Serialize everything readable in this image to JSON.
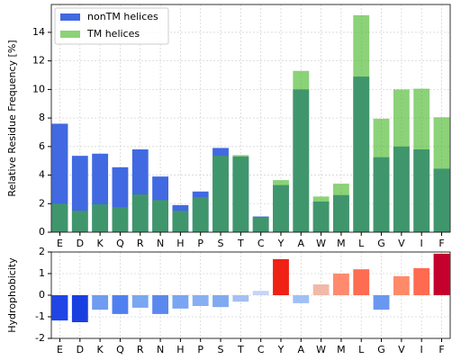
{
  "chart_data": [
    {
      "type": "bar",
      "ylabel": "Relative Residue Frequency [%]",
      "categories": [
        "E",
        "D",
        "K",
        "Q",
        "R",
        "N",
        "H",
        "P",
        "S",
        "T",
        "C",
        "Y",
        "A",
        "W",
        "M",
        "L",
        "G",
        "V",
        "I",
        "F"
      ],
      "series": [
        {
          "name": "nonTM helices",
          "color": "#4169e1",
          "opacity": 1,
          "values": [
            7.6,
            5.35,
            5.5,
            4.55,
            5.8,
            3.9,
            1.9,
            2.85,
            5.9,
            5.3,
            1.1,
            3.3,
            10.0,
            2.15,
            2.6,
            10.9,
            5.25,
            6.0,
            5.8,
            4.45
          ]
        },
        {
          "name": "TM helices",
          "color": "#3fb41e",
          "opacity": 0.6,
          "values": [
            2.0,
            1.5,
            1.95,
            1.75,
            2.65,
            2.25,
            1.5,
            2.45,
            5.35,
            5.4,
            1.05,
            3.65,
            11.3,
            2.5,
            3.4,
            15.2,
            7.95,
            10.0,
            10.05,
            8.05
          ]
        }
      ],
      "ylim": [
        0,
        15.95
      ],
      "yticks": [
        0,
        2,
        4,
        6,
        8,
        10,
        12,
        14
      ],
      "grid": true,
      "legend": "upper left"
    },
    {
      "type": "bar",
      "ylabel": "Hydrophobicity",
      "categories": [
        "E",
        "D",
        "K",
        "Q",
        "R",
        "N",
        "H",
        "P",
        "S",
        "T",
        "C",
        "Y",
        "A",
        "W",
        "M",
        "L",
        "G",
        "V",
        "I",
        "F"
      ],
      "values": [
        -1.17,
        -1.25,
        -0.67,
        -0.87,
        -0.58,
        -0.87,
        -0.62,
        -0.5,
        -0.55,
        -0.3,
        0.2,
        1.67,
        -0.37,
        0.5,
        1.0,
        1.2,
        -0.67,
        0.88,
        1.25,
        1.92
      ],
      "colors": [
        "#1f45e6",
        "#1a3fe0",
        "#6f9cf0",
        "#5080f0",
        "#7aa7f0",
        "#5a88ee",
        "#7aa5f2",
        "#88aff2",
        "#80aaf0",
        "#a3c0f4",
        "#c5d5f5",
        "#ef2014",
        "#a0bff5",
        "#f1b9a8",
        "#ff8a6e",
        "#fe6c51",
        "#6a98f0",
        "#ff8a6a",
        "#ff6a50",
        "#c4002c"
      ],
      "ylim": [
        -2,
        2
      ],
      "yticks": [
        -2,
        -1,
        0,
        1,
        2
      ],
      "grid": true
    }
  ]
}
